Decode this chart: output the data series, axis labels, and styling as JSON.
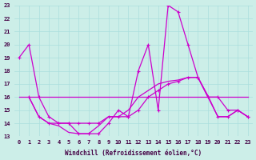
{
  "xlabel": "Windchill (Refroidissement éolien,°C)",
  "background_color": "#cceee8",
  "grid_color": "#aadddd",
  "line_color": "#cc00cc",
  "xlim": [
    -0.5,
    23.5
  ],
  "ylim": [
    13,
    23
  ],
  "xticks": [
    0,
    1,
    2,
    3,
    4,
    5,
    6,
    7,
    8,
    9,
    10,
    11,
    12,
    13,
    14,
    15,
    16,
    17,
    18,
    19,
    20,
    21,
    22,
    23
  ],
  "yticks": [
    13,
    14,
    15,
    16,
    17,
    18,
    19,
    20,
    21,
    22,
    23
  ],
  "line1_x": [
    0,
    1,
    2,
    3,
    4,
    5,
    6,
    7,
    8,
    9,
    10,
    11,
    12,
    13,
    14,
    15,
    16,
    17,
    18,
    19,
    20,
    21,
    22,
    23
  ],
  "line1_y": [
    19,
    20,
    16,
    14.5,
    14,
    14,
    13.2,
    13.2,
    13.2,
    14,
    15,
    14.5,
    18,
    20,
    15,
    23,
    22.5,
    20,
    17.5,
    16,
    16,
    15,
    15,
    14.5
  ],
  "line2_x": [
    0,
    1,
    2,
    3,
    4,
    5,
    6,
    7,
    8,
    9,
    10,
    11,
    12,
    13,
    14,
    15,
    16,
    17,
    18,
    19,
    20,
    21,
    22,
    23
  ],
  "line2_y": [
    16,
    16,
    16,
    16,
    16,
    16,
    16,
    16,
    16,
    16,
    16,
    16,
    16,
    16,
    16,
    16,
    16,
    16,
    16,
    16,
    16,
    16,
    16,
    16
  ],
  "line3_x": [
    1,
    2,
    3,
    4,
    5,
    6,
    7,
    8,
    9,
    10,
    11,
    12,
    13,
    14,
    15,
    16,
    17,
    18,
    19,
    20,
    21,
    22,
    23
  ],
  "line3_y": [
    16,
    14.5,
    14,
    14,
    14,
    14,
    14,
    14,
    14.5,
    14.5,
    14.5,
    15,
    16,
    16.5,
    17,
    17.2,
    17.5,
    17.5,
    16,
    14.5,
    14.5,
    15,
    14.5
  ],
  "line4_x": [
    1,
    2,
    3,
    4,
    5,
    6,
    7,
    8,
    9,
    10,
    11,
    12,
    13,
    14,
    15,
    16,
    17,
    18,
    19,
    20,
    21,
    22,
    23
  ],
  "line4_y": [
    16,
    14.5,
    14,
    13.8,
    13.3,
    13.2,
    13.2,
    13.8,
    14.5,
    14.5,
    15,
    16,
    16.5,
    17,
    17.2,
    17.3,
    17.5,
    17.5,
    16.1,
    14.5,
    14.5,
    15,
    14.5
  ]
}
